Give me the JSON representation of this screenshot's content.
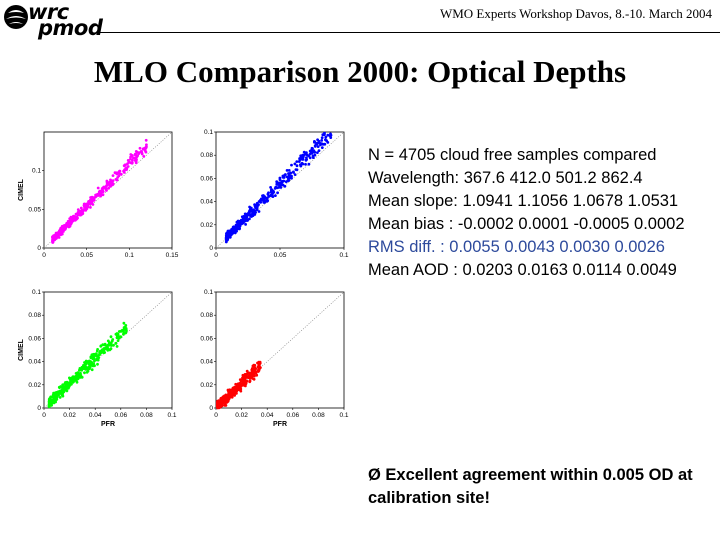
{
  "header": {
    "logo_line1": "wrc",
    "logo_line2": "pmod",
    "workshop": "WMO Experts Workshop Davos, 8.-10. March 2004"
  },
  "title": "MLO Comparison 2000: Optical Depths",
  "stats": {
    "n_line": "N = 4705 cloud free samples compared",
    "wavelength_line": "Wavelength:   367.6  412.0     501.2 862.4",
    "slope_line": "Mean slope:  1.0941  1.1056  1.0678 1.0531",
    "bias_line": "Mean bias  : -0.0002  0.0001 -0.0005 0.0002",
    "rms_line": "RMS diff.   :  0.0055  0.0043  0.0030 0.0026",
    "aod_line": "Mean AOD :  0.0203  0.0163  0.0114 0.0049"
  },
  "conclusion": "Ø Excellent agreement within 0.005 OD at calibration site!",
  "colors": {
    "magenta": "#ff00ff",
    "blue": "#0000ff",
    "green": "#00ff00",
    "red": "#ff0000",
    "rms_text": "#2d4a9c"
  },
  "chart_data": [
    {
      "type": "scatter",
      "label": "367.6",
      "color": "#ff00ff",
      "xlabel": "",
      "ylabel": "CIMEL",
      "xlim": [
        0,
        0.15
      ],
      "ylim": [
        0,
        0.15
      ],
      "xticks": [
        "0",
        "0.05",
        "0.1",
        "0.15"
      ],
      "yticks": [
        "0",
        "0.05",
        "0.1"
      ],
      "approx_slope": 1.0941,
      "approx_x_range": [
        0.01,
        0.12
      ],
      "reference_line": "1:1 dotted"
    },
    {
      "type": "scatter",
      "label": "412.0",
      "color": "#0000ff",
      "xlabel": "",
      "ylabel": "",
      "xlim": [
        0,
        0.1
      ],
      "ylim": [
        0,
        0.1
      ],
      "xticks": [
        "0",
        "0.05",
        "0.1"
      ],
      "yticks": [
        "0",
        "0.02",
        "0.04",
        "0.06",
        "0.08",
        "0.1"
      ],
      "approx_slope": 1.1056,
      "approx_x_range": [
        0.008,
        0.09
      ],
      "reference_line": "1:1 dotted"
    },
    {
      "type": "scatter",
      "label": "501.2",
      "color": "#00ff00",
      "xlabel": "",
      "ylabel": "CIMEL",
      "xlim": [
        0,
        0.1
      ],
      "ylim": [
        0,
        0.1
      ],
      "xticks": [
        "0",
        "0.02",
        "0.04",
        "0.06",
        "0.08",
        "0.1"
      ],
      "yticks": [
        "0",
        "0.02",
        "0.04",
        "0.06",
        "0.08",
        "0.1"
      ],
      "approx_slope": 1.0678,
      "approx_x_range": [
        0.004,
        0.065
      ],
      "reference_line": "1:1 dotted"
    },
    {
      "type": "scatter",
      "label": "862.4",
      "color": "#ff0000",
      "xlabel": "PFR",
      "ylabel": "",
      "xlim": [
        0,
        0.1
      ],
      "ylim": [
        0,
        0.1
      ],
      "xticks": [
        "0",
        "0.02",
        "0.04",
        "0.06",
        "0.08",
        "0.1"
      ],
      "yticks": [
        "0",
        "0.02",
        "0.04",
        "0.06",
        "0.08",
        "0.1"
      ],
      "approx_slope": 1.0531,
      "approx_x_range": [
        0.001,
        0.035
      ],
      "reference_line": "1:1 dotted"
    }
  ],
  "plot_xlabels": [
    "",
    "",
    "PFR",
    "PFR"
  ]
}
